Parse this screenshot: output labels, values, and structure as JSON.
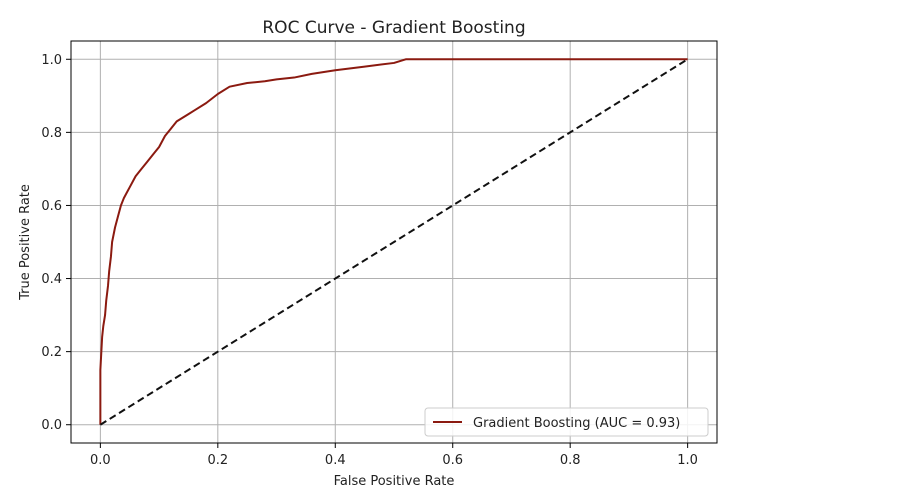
{
  "chart_data": {
    "type": "line",
    "title": "ROC Curve - Gradient Boosting",
    "xlabel": "False Positive Rate",
    "ylabel": "True Positive Rate",
    "xlim": [
      -0.05,
      1.05
    ],
    "ylim": [
      -0.05,
      1.05
    ],
    "xticks": [
      0.0,
      0.2,
      0.4,
      0.6,
      0.8,
      1.0
    ],
    "yticks": [
      0.0,
      0.2,
      0.4,
      0.6,
      0.8,
      1.0
    ],
    "xtick_labels": [
      "0.0",
      "0.2",
      "0.4",
      "0.6",
      "0.8",
      "1.0"
    ],
    "ytick_labels": [
      "0.0",
      "0.2",
      "0.4",
      "0.6",
      "0.8",
      "1.0"
    ],
    "grid": true,
    "legend_position": "lower-right",
    "series": [
      {
        "name": "Gradient Boosting (AUC = 0.93)",
        "color": "#8b1a10",
        "style": "solid",
        "x": [
          0.0,
          0.0,
          0.003,
          0.005,
          0.008,
          0.01,
          0.013,
          0.015,
          0.018,
          0.02,
          0.025,
          0.03,
          0.035,
          0.04,
          0.05,
          0.06,
          0.07,
          0.08,
          0.09,
          0.1,
          0.11,
          0.12,
          0.13,
          0.14,
          0.15,
          0.16,
          0.18,
          0.2,
          0.22,
          0.25,
          0.28,
          0.3,
          0.33,
          0.36,
          0.4,
          0.45,
          0.5,
          0.52,
          0.6,
          0.7,
          0.8,
          0.9,
          1.0
        ],
        "y": [
          0.0,
          0.15,
          0.24,
          0.27,
          0.3,
          0.34,
          0.38,
          0.42,
          0.46,
          0.5,
          0.54,
          0.57,
          0.6,
          0.62,
          0.65,
          0.68,
          0.7,
          0.72,
          0.74,
          0.76,
          0.79,
          0.81,
          0.83,
          0.84,
          0.85,
          0.86,
          0.88,
          0.905,
          0.925,
          0.935,
          0.94,
          0.945,
          0.95,
          0.96,
          0.97,
          0.98,
          0.99,
          1.0,
          1.0,
          1.0,
          1.0,
          1.0,
          1.0
        ]
      },
      {
        "color": "#111111",
        "style": "dashed",
        "x": [
          0.0,
          1.0
        ],
        "y": [
          0.0,
          1.0
        ]
      }
    ]
  }
}
